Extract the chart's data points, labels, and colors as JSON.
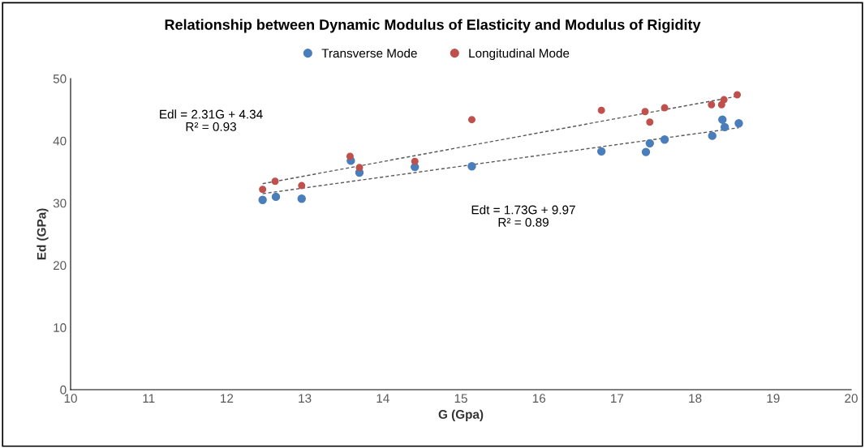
{
  "chart_data": {
    "type": "scatter",
    "title": "Relationship between Dynamic Modulus of Elasticity and Modulus of Rigidity",
    "xlabel": "G (Gpa)",
    "ylabel": "Ed (GPa)",
    "xlim": [
      10,
      20
    ],
    "xticks": [
      10,
      11,
      12,
      13,
      14,
      15,
      16,
      17,
      18,
      19,
      20
    ],
    "ylim": [
      0,
      50
    ],
    "yticks": [
      0,
      10,
      20,
      30,
      40,
      50
    ],
    "grid": false,
    "legend": "top",
    "marker": "circle",
    "series": [
      {
        "name": "Transverse Mode",
        "color": "#4a7ebb",
        "x": [
          12.46,
          12.63,
          12.96,
          13.59,
          13.7,
          14.41,
          15.14,
          16.8,
          17.37,
          17.42,
          17.61,
          18.22,
          18.35,
          18.38,
          18.56
        ],
        "values": [
          30.5,
          31.0,
          30.7,
          36.8,
          34.9,
          35.8,
          35.9,
          38.3,
          38.2,
          39.6,
          40.2,
          40.8,
          43.4,
          42.2,
          42.8
        ]
      },
      {
        "name": "Longitudinal Mode",
        "color": "#c0504d",
        "x": [
          12.46,
          12.62,
          12.96,
          13.58,
          13.7,
          14.41,
          15.14,
          16.8,
          17.36,
          17.42,
          17.61,
          18.21,
          18.34,
          18.37,
          18.54
        ],
        "values": [
          32.2,
          33.5,
          32.8,
          37.5,
          35.7,
          36.7,
          43.4,
          44.9,
          44.7,
          43.0,
          45.3,
          45.8,
          45.8,
          46.6,
          47.4
        ]
      },
      {
        "type": "line",
        "color": "#595959",
        "line_style": "dashed",
        "marker": "none",
        "x": [
          12.46,
          18.56
        ],
        "values": [
          33.1,
          47.2
        ]
      },
      {
        "type": "line",
        "color": "#595959",
        "line_style": "dashed",
        "marker": "none",
        "x": [
          12.46,
          18.56
        ],
        "values": [
          31.5,
          42.1
        ]
      }
    ],
    "annotations": [
      "Edl = 2.31G + 4.34\nR² = 0.93",
      "Edt = 1.73G + 9.97\nR² = 0.89"
    ]
  }
}
